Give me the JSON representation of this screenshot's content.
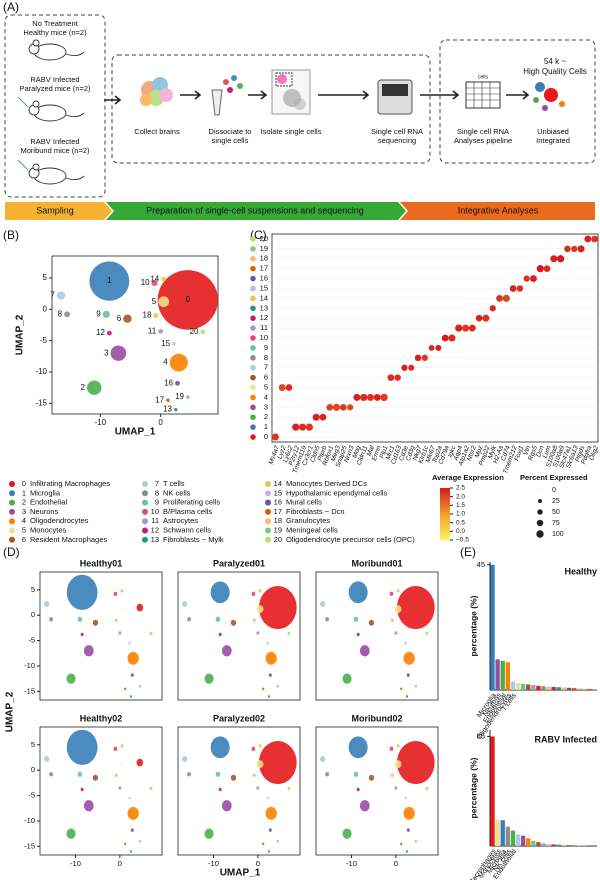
{
  "panel_labels": [
    "(A)",
    "(B)",
    "(C)",
    "(D)",
    "(E)"
  ],
  "sampling": {
    "groups": [
      {
        "lines": [
          "No Treatment",
          "Healthy mice (n=2)"
        ]
      },
      {
        "lines": [
          "RABV Infected",
          "Paralyzed mice (n=2)"
        ]
      },
      {
        "lines": [
          "RABV Infected",
          "Moribund mice (n=2)"
        ]
      }
    ]
  },
  "steps": [
    {
      "lines": [
        "Collect brains"
      ]
    },
    {
      "lines": [
        "Dissociate to",
        "single cells"
      ]
    },
    {
      "lines": [
        "Isolate single cells"
      ]
    },
    {
      "lines": [
        "Single cell RNA",
        "sequencing"
      ]
    },
    {
      "lines": [
        "Single cell RNA",
        "Analyses pipeline"
      ]
    },
    {
      "lines": [
        "Unbiased",
        "Integrated"
      ]
    }
  ],
  "pipeline_grid_label": "cells",
  "cells_note": [
    "54 k ~",
    "High Quality Cells"
  ],
  "stages": [
    "Sampling",
    "Preparation of single-cell suspensions and sequencing",
    "Integrative Analyses"
  ],
  "cluster_legend": {
    "ids": [
      "0",
      "1",
      "2",
      "3",
      "4",
      "5",
      "6",
      "7",
      "8",
      "9",
      "10",
      "11",
      "12",
      "13",
      "14",
      "15",
      "16",
      "17",
      "18",
      "19",
      "20"
    ],
    "names": [
      "Infiltrating Macrophages",
      "Microglia",
      "Endothelial",
      "Neurons",
      "Oligodendrocytes",
      "Monocytes",
      "Resident Macrophages",
      "T cells",
      "NK cells",
      "Proliferating cells",
      "B/Plasma cells",
      "Astrocytes",
      "Schwann cells",
      "Fibroblasts − Mylk",
      "Monocytes Derived DCs",
      "Hypothalamic ependymal cells",
      "Mural cells",
      "Fibroblasts − Dcn",
      "Granulocytes",
      "Meningeal cells",
      "Oligodendrocyte precursor cells (OPC)"
    ],
    "colors": [
      "#e41a1c",
      "#377eb8",
      "#4daf4a",
      "#984ea3",
      "#ff7f00",
      "#f0e08a",
      "#a65628",
      "#a6cee3",
      "#8c8c8c",
      "#66c2a5",
      "#e34a6f",
      "#9e9ac8",
      "#c51b7d",
      "#1b9e77",
      "#e6c84f",
      "#c7b3e5",
      "#6a51a3",
      "#d95f02",
      "#fdb863",
      "#7fc97f",
      "#b3de69"
    ]
  },
  "chart_data": [
    {
      "type": "umap",
      "x_label": "UMAP_1",
      "y_label": "UMAP_2",
      "xlim": [
        -18,
        9.5
      ],
      "ylim": [
        -16.7,
        8.5
      ],
      "xticks": [
        -10,
        0
      ],
      "yticks": [
        5,
        0,
        -5,
        -10,
        -15
      ],
      "labels": [
        "0",
        "1",
        "2",
        "3",
        "4",
        "5",
        "6",
        "7",
        "8",
        "9",
        "10",
        "11",
        "12",
        "13",
        "14",
        "15",
        "16",
        "17",
        "18",
        "19",
        "20"
      ],
      "x": [
        4.5,
        -8.5,
        -11,
        -7,
        3,
        0.5,
        -5.5,
        -16.5,
        -15.5,
        -9,
        -1,
        0,
        -8.5,
        2.5,
        0.5,
        2.2,
        2.8,
        1.2,
        -0.8,
        4.5,
        7
      ],
      "y": [
        1.5,
        4.5,
        -12.5,
        -7,
        -8.5,
        1.2,
        -1.5,
        2.2,
        -0.8,
        -0.8,
        4.2,
        -3.5,
        -3.8,
        -16,
        4.8,
        -5.5,
        -11.8,
        -14.5,
        -1,
        -14,
        -3.6
      ]
    },
    {
      "type": "dotplot",
      "rows": [
        "0",
        "1",
        "2",
        "3",
        "4",
        "5",
        "6",
        "7",
        "8",
        "9",
        "10",
        "11",
        "12",
        "13",
        "14",
        "15",
        "16",
        "17",
        "18",
        "19",
        "20"
      ],
      "genes": [
        "Ms4a7",
        "Lyz2",
        "Ly6c2",
        "P2ry12",
        "Tmem119",
        "Cx3cr1",
        "Cldn5",
        "Ptprb",
        "Rbfox1",
        "Meg3",
        "Snap25",
        "Nrxn3",
        "Mog",
        "Cldn11",
        "Mal",
        "Ermn",
        "Plp1",
        "Mrc1",
        "Cd163",
        "Cd3e",
        "Cd3g",
        "Nkg7",
        "Klrb1c",
        "Mki67",
        "Top2a",
        "Cd79a",
        "Igkc",
        "Aqp4",
        "Atp1a2",
        "Ntsr2",
        "Mpz",
        "Pmp22",
        "Mylk",
        "H2-Aa",
        "Cd74",
        "Tmem212",
        "Foxj1",
        "Vtn",
        "Rgs5",
        "Dcn",
        "Lum",
        "S100a8",
        "S100a9",
        "Slc47a1",
        "Slc6a13",
        "Ptgds",
        "Pdgfra",
        "Olig2"
      ],
      "marker_row": [
        0,
        5,
        5,
        1,
        1,
        1,
        2,
        2,
        3,
        3,
        3,
        3,
        4,
        4,
        4,
        4,
        4,
        6,
        6,
        7,
        7,
        8,
        8,
        9,
        9,
        10,
        10,
        11,
        11,
        11,
        12,
        12,
        13,
        14,
        14,
        15,
        15,
        16,
        16,
        17,
        17,
        18,
        18,
        19,
        19,
        19,
        20,
        20
      ],
      "avg": [
        2.2,
        2.0,
        2.3,
        2.4,
        2.3,
        2.2,
        2.4,
        2.3,
        2.1,
        2.0,
        2.2,
        2.0,
        2.4,
        2.3,
        2.2,
        2.4,
        2.1,
        2.3,
        2.2,
        2.4,
        2.3,
        2.4,
        2.2,
        2.3,
        2.4,
        2.5,
        2.3,
        2.4,
        2.2,
        2.3,
        2.4,
        2.2,
        2.3,
        2.2,
        2.0,
        2.4,
        2.3,
        2.2,
        2.4,
        2.5,
        2.3,
        2.4,
        2.5,
        2.3,
        2.2,
        2.4,
        2.4,
        2.2
      ],
      "pct": [
        90,
        85,
        80,
        95,
        90,
        95,
        90,
        85,
        80,
        95,
        75,
        70,
        90,
        95,
        90,
        85,
        100,
        80,
        75,
        70,
        65,
        75,
        70,
        60,
        65,
        85,
        90,
        95,
        90,
        85,
        80,
        90,
        70,
        85,
        95,
        80,
        75,
        70,
        85,
        95,
        80,
        90,
        95,
        75,
        70,
        90,
        85,
        80
      ],
      "color_title": "Average Expression",
      "color_lim": [
        -0.5,
        2.5
      ],
      "color_ticks": [
        2.5,
        2.0,
        1.5,
        1.0,
        0.5,
        0.0,
        -0.5
      ],
      "color_tick_labels": [
        "2.5",
        "2.0",
        "1.5",
        "1.0",
        "0.5",
        "0.0",
        "−0.5"
      ],
      "size_title": "Percent Expressed",
      "size_ticks": [
        0,
        25,
        50,
        75,
        100
      ]
    },
    {
      "type": "bar",
      "title": "Healthy",
      "y_label": "percentage (%)",
      "ylim": [
        0,
        46
      ],
      "yticks": [
        45
      ],
      "categories": [
        "Microglia",
        "Neurons",
        "Endothelial",
        "Oligodendrocytes",
        "T cells",
        null,
        null,
        null,
        null,
        null,
        null,
        null,
        null,
        null,
        null,
        null,
        null,
        null,
        null,
        null,
        null
      ],
      "values": [
        45,
        11,
        10.5,
        10,
        3,
        2.5,
        2.2,
        2,
        1.8,
        1.5,
        1.3,
        1.2,
        1.1,
        1,
        0.9,
        0.8,
        0.7,
        0.6,
        0.5,
        0.4,
        0.3
      ],
      "colors": [
        "#377eb8",
        "#984ea3",
        "#4daf4a",
        "#ff7f00",
        "#a6cee3",
        "#f0e08a",
        "#66c2a5",
        "#a65628",
        "#9e9ac8",
        "#e41a1c",
        "#8c8c8c",
        "#e6c84f",
        "#c51b7d",
        "#1b9e77",
        "#fdb863",
        "#6a51a3",
        "#d95f02",
        "#c7b3e5",
        "#b3de69",
        "#e34a6f",
        "#7fc97f"
      ]
    },
    {
      "type": "bar",
      "title": "RABV Infected",
      "y_label": "percentage (%)",
      "ylim": [
        0,
        90
      ],
      "yticks": [
        85
      ],
      "categories": [
        "Macrophages",
        "Monocytes",
        "Microglia",
        "NK cells",
        "Endothelial",
        null,
        null,
        null,
        null,
        null,
        null,
        null,
        null,
        null,
        null,
        null,
        null,
        null,
        null,
        null,
        null
      ],
      "values": [
        85,
        20,
        20,
        15,
        12,
        9,
        8,
        6,
        4,
        3,
        2,
        1.5,
        1.2,
        1,
        0.8,
        0.6,
        0.5,
        0.4,
        0.3,
        0.2,
        0.1
      ],
      "colors": [
        "#e41a1c",
        "#f0e08a",
        "#377eb8",
        "#8c8c8c",
        "#4daf4a",
        "#a6cee3",
        "#984ea3",
        "#ff7f00",
        "#66c2a5",
        "#a65628",
        "#9e9ac8",
        "#e6c84f",
        "#c51b7d",
        "#1b9e77",
        "#fdb863",
        "#6a51a3",
        "#d95f02",
        "#c7b3e5",
        "#b3de69",
        "#e34a6f",
        "#7fc97f"
      ]
    },
    {
      "type": "umap_grid",
      "x_label": "UMAP_1",
      "y_label": "UMAP_2",
      "xlim": [
        -18,
        9.5
      ],
      "ylim": [
        -16.7,
        8.5
      ],
      "xticks": [
        -10,
        0
      ],
      "yticks": [
        5,
        0,
        -5,
        -10,
        -15
      ],
      "panels": [
        "Healthy01",
        "Paralyzed01",
        "Moribund01",
        "Healthy02",
        "Paralyzed02",
        "Moribund02"
      ]
    }
  ]
}
